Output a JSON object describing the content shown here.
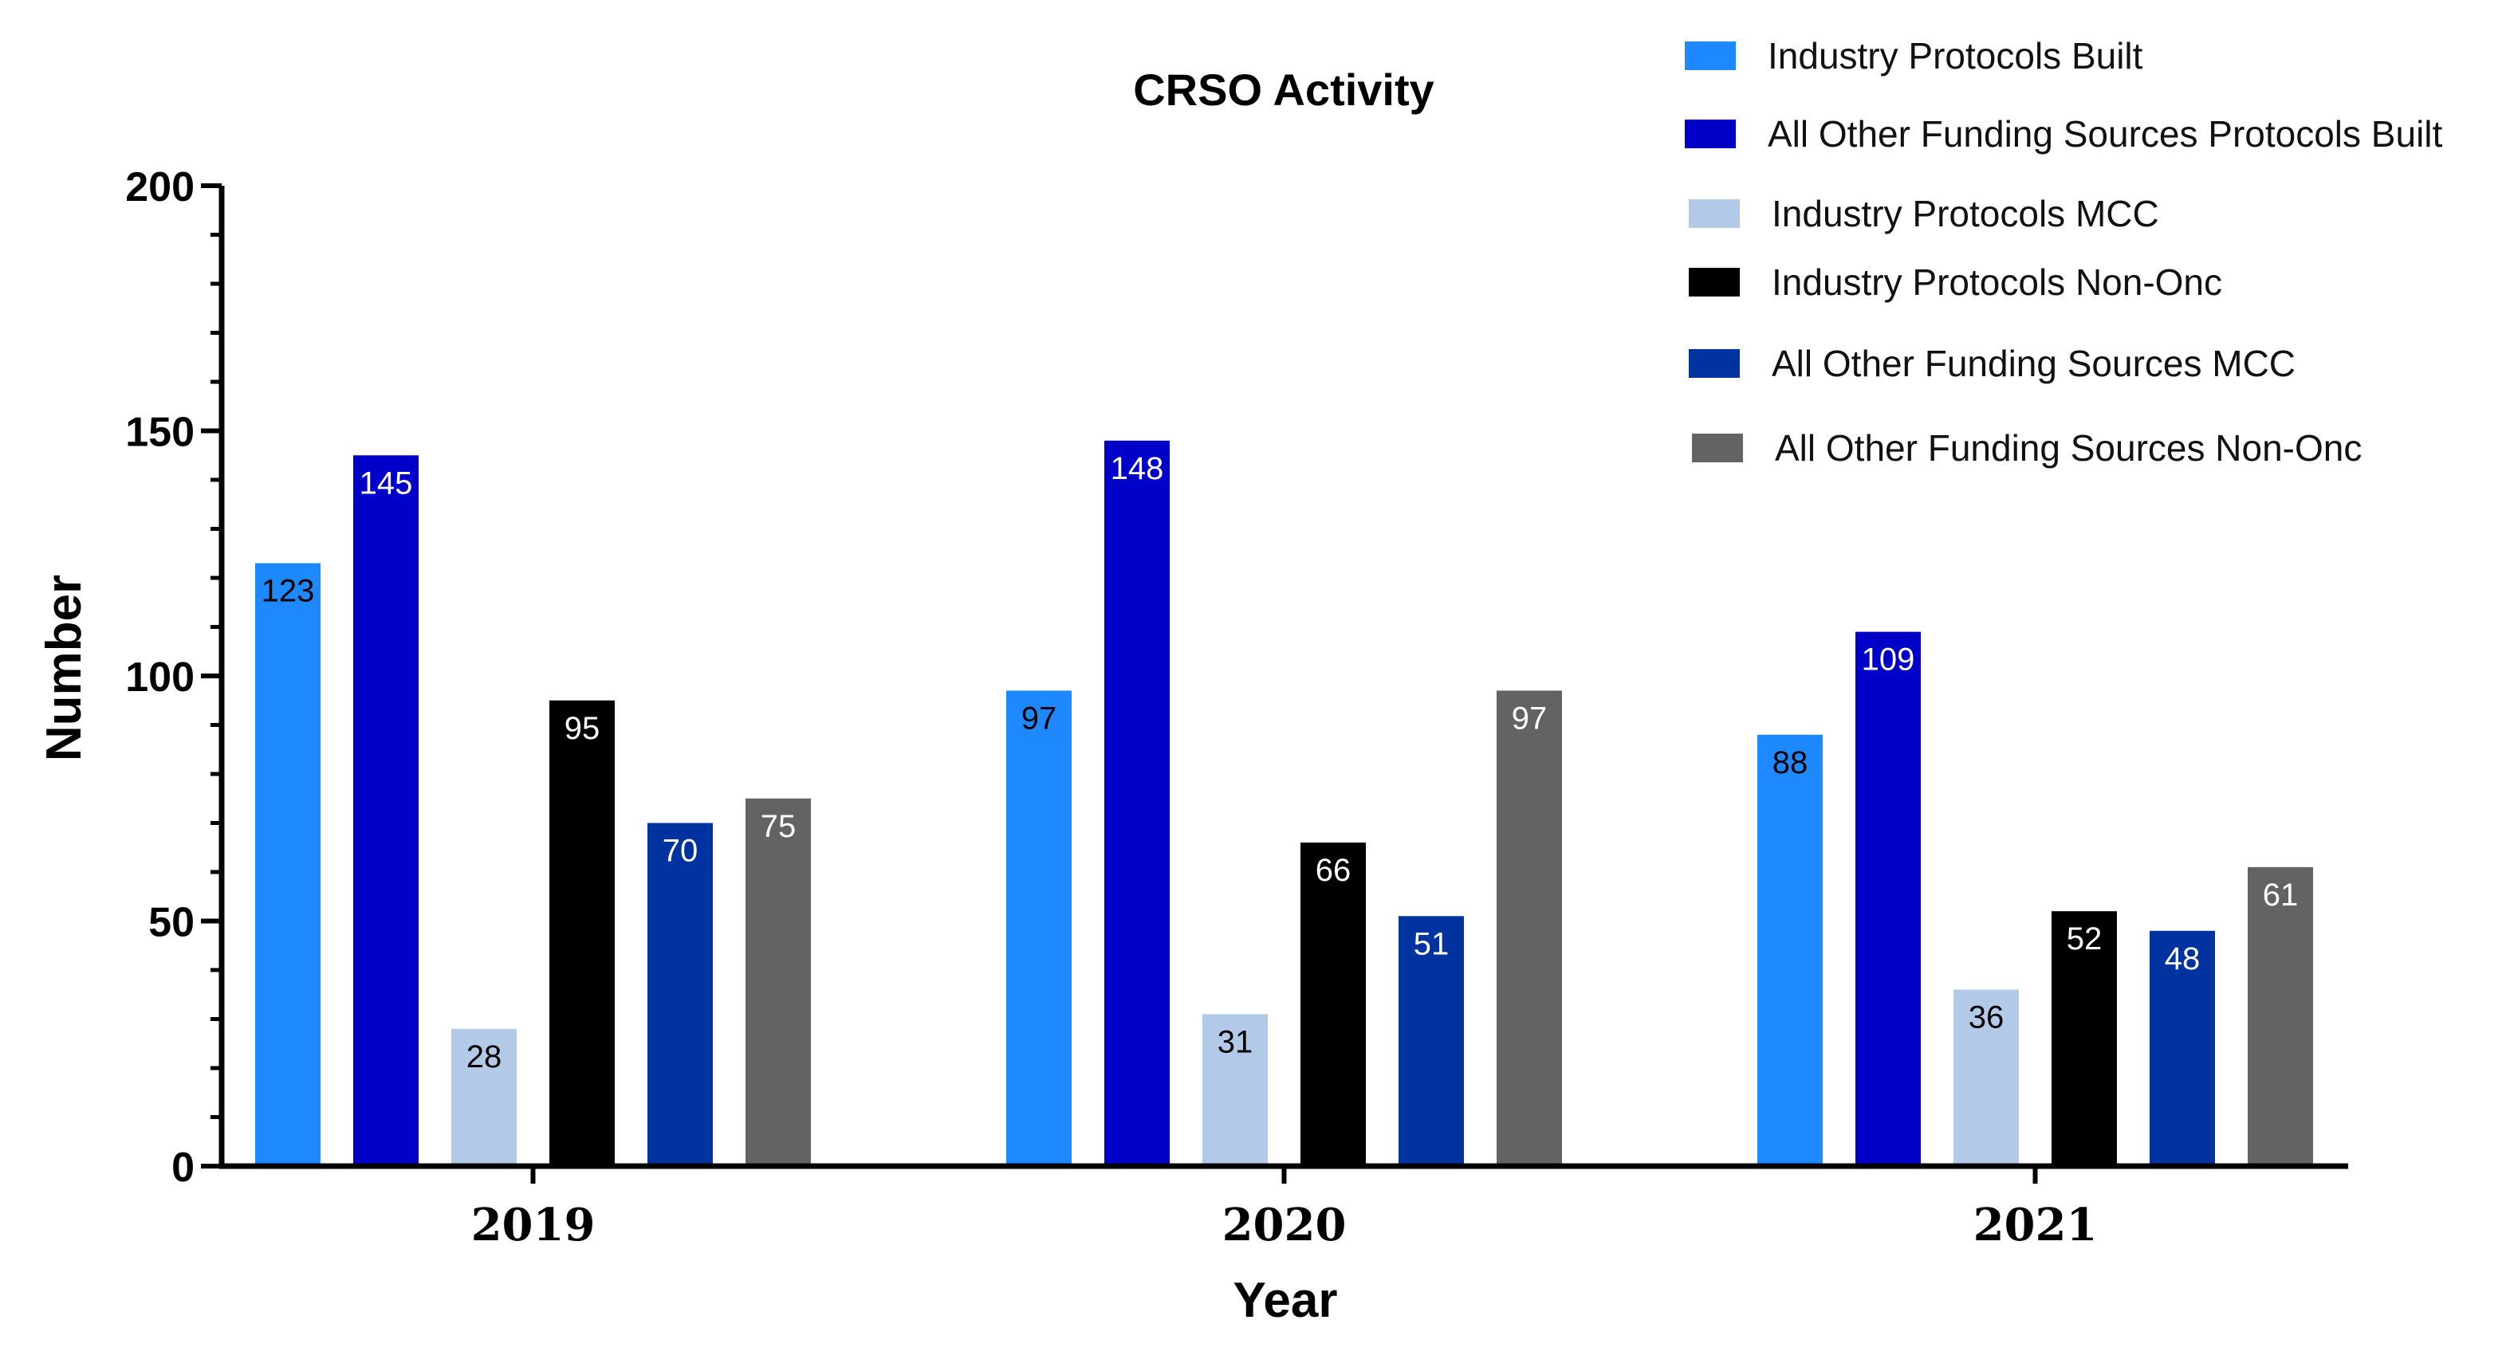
{
  "chart_data": {
    "type": "bar",
    "title": "CRSO Activity",
    "xlabel": "Year",
    "ylabel": "Number",
    "categories": [
      "2019",
      "2020",
      "2021"
    ],
    "ylim": [
      0,
      200
    ],
    "yticks": [
      0,
      50,
      100,
      150,
      200
    ],
    "grid": false,
    "legend_position": "top-right",
    "series": [
      {
        "name": "Industry Protocols Built",
        "color": "#1e88ff",
        "label_color": "#000000",
        "values": [
          123,
          97,
          88
        ]
      },
      {
        "name": "All Other Funding Sources Protocols Built",
        "color": "#0000c8",
        "label_color": "#ffffff",
        "values": [
          145,
          148,
          109
        ]
      },
      {
        "name": "Industry Protocols MCC",
        "color": "#b2c9e8",
        "label_color": "#000000",
        "values": [
          28,
          31,
          36
        ]
      },
      {
        "name": "Industry Protocols Non-Onc",
        "color": "#000000",
        "label_color": "#ffffff",
        "values": [
          95,
          66,
          52
        ]
      },
      {
        "name": "All Other Funding Sources MCC",
        "color": "#0033a0",
        "label_color": "#ffffff",
        "values": [
          70,
          51,
          48
        ]
      },
      {
        "name": "All Other Funding Sources Non-Onc",
        "color": "#636363",
        "label_color": "#ffffff",
        "values": [
          75,
          97,
          61
        ]
      }
    ]
  }
}
